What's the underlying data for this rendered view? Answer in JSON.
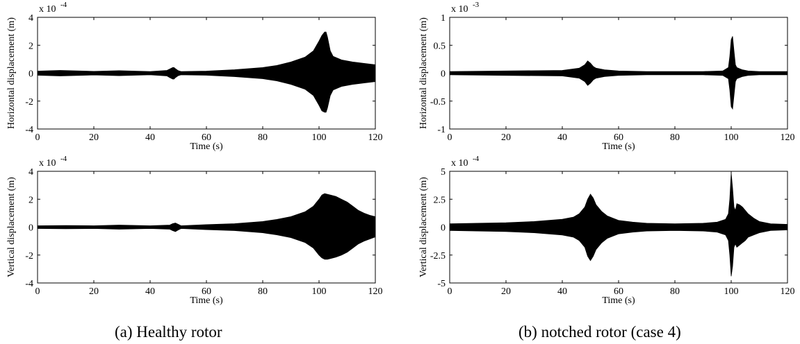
{
  "chart_data": [
    {
      "type": "area",
      "panel": "a",
      "ylabel": "Horizontal displacement (m)",
      "xlabel": "Time (s)",
      "multiplier_label": "x 10",
      "multiplier_exp": "-4",
      "xlim": [
        0,
        120
      ],
      "ylim": [
        -4,
        4
      ],
      "xticks": [
        "0",
        "20",
        "40",
        "60",
        "80",
        "100",
        "120"
      ],
      "yticks": [
        "-4",
        "-2",
        "0",
        "2",
        "4"
      ],
      "x": [
        0,
        8,
        20,
        29,
        40,
        46,
        47,
        48,
        48.5,
        49,
        50,
        51,
        60,
        70,
        80,
        85,
        90,
        95,
        98,
        100,
        101,
        102,
        102.5,
        103,
        104,
        105,
        108,
        112,
        116,
        120
      ],
      "upper": [
        0.15,
        0.2,
        0.13,
        0.18,
        0.12,
        0.2,
        0.3,
        0.4,
        0.4,
        0.32,
        0.18,
        0.12,
        0.15,
        0.25,
        0.4,
        0.55,
        0.8,
        1.15,
        1.6,
        2.3,
        2.7,
        2.95,
        2.95,
        2.6,
        1.6,
        1.2,
        0.95,
        0.8,
        0.7,
        0.6
      ],
      "lower": [
        -0.15,
        -0.2,
        -0.13,
        -0.18,
        -0.12,
        -0.2,
        -0.32,
        -0.42,
        -0.42,
        -0.32,
        -0.18,
        -0.12,
        -0.15,
        -0.25,
        -0.4,
        -0.55,
        -0.8,
        -1.15,
        -1.6,
        -2.3,
        -2.7,
        -2.8,
        -2.8,
        -2.5,
        -1.6,
        -1.2,
        -0.95,
        -0.8,
        -0.7,
        -0.6
      ]
    },
    {
      "type": "area",
      "panel": "a",
      "ylabel": "Vertical displacement (m)",
      "xlabel": "Time (s)",
      "multiplier_label": "x 10",
      "multiplier_exp": "-4",
      "xlim": [
        0,
        120
      ],
      "ylim": [
        -4,
        4
      ],
      "xticks": [
        "0",
        "20",
        "40",
        "60",
        "80",
        "100",
        "120"
      ],
      "yticks": [
        "-4",
        "-2",
        "0",
        "2",
        "4"
      ],
      "x": [
        0,
        10,
        20,
        29,
        40,
        47,
        48,
        49,
        50,
        51,
        60,
        70,
        80,
        85,
        90,
        95,
        98,
        100,
        101,
        102,
        103,
        104,
        106,
        108,
        110,
        112,
        114,
        116,
        118,
        120
      ],
      "upper": [
        0.1,
        0.12,
        0.1,
        0.15,
        0.1,
        0.15,
        0.25,
        0.3,
        0.2,
        0.1,
        0.18,
        0.25,
        0.4,
        0.55,
        0.75,
        1.1,
        1.5,
        2.0,
        2.3,
        2.4,
        2.35,
        2.3,
        2.2,
        2.0,
        1.8,
        1.5,
        1.2,
        1.0,
        0.85,
        0.75
      ],
      "lower": [
        -0.1,
        -0.12,
        -0.1,
        -0.15,
        -0.1,
        -0.15,
        -0.25,
        -0.32,
        -0.2,
        -0.1,
        -0.18,
        -0.25,
        -0.4,
        -0.55,
        -0.75,
        -1.1,
        -1.5,
        -2.0,
        -2.2,
        -2.3,
        -2.3,
        -2.25,
        -2.15,
        -2.0,
        -1.8,
        -1.5,
        -1.2,
        -1.0,
        -0.85,
        -0.7
      ]
    },
    {
      "type": "area",
      "panel": "b",
      "ylabel": "Horizontal displacement (m)",
      "xlabel": "Time (s)",
      "multiplier_label": "x 10",
      "multiplier_exp": "-3",
      "xlim": [
        0,
        120
      ],
      "ylim": [
        -1,
        1
      ],
      "xticks": [
        "0",
        "20",
        "40",
        "60",
        "80",
        "100",
        "120"
      ],
      "yticks": [
        "-1",
        "-0.5",
        "0",
        "0.5",
        "1"
      ],
      "x": [
        0,
        20,
        40,
        46,
        48,
        49,
        50,
        51,
        52,
        55,
        60,
        70,
        80,
        90,
        97,
        99,
        99.5,
        100,
        100.5,
        101,
        101.5,
        102,
        103,
        104,
        106,
        110,
        120
      ],
      "upper": [
        0.03,
        0.04,
        0.05,
        0.09,
        0.15,
        0.22,
        0.18,
        0.12,
        0.09,
        0.06,
        0.04,
        0.03,
        0.03,
        0.03,
        0.04,
        0.1,
        0.3,
        0.6,
        0.66,
        0.4,
        0.15,
        0.1,
        0.08,
        0.06,
        0.04,
        0.03,
        0.03
      ],
      "lower": [
        -0.03,
        -0.04,
        -0.05,
        -0.09,
        -0.15,
        -0.22,
        -0.18,
        -0.12,
        -0.09,
        -0.06,
        -0.04,
        -0.03,
        -0.03,
        -0.03,
        -0.04,
        -0.1,
        -0.3,
        -0.6,
        -0.64,
        -0.4,
        -0.15,
        -0.1,
        -0.08,
        -0.06,
        -0.04,
        -0.03,
        -0.03
      ]
    },
    {
      "type": "area",
      "panel": "b",
      "ylabel": "Vertical displacement (m)",
      "xlabel": "Time (s)",
      "multiplier_label": "x 10",
      "multiplier_exp": "-4",
      "xlim": [
        0,
        120
      ],
      "ylim": [
        -5,
        5
      ],
      "xticks": [
        "0",
        "20",
        "40",
        "60",
        "80",
        "100",
        "120"
      ],
      "yticks": [
        "-5",
        "-2.5",
        "0",
        "2.5",
        "5"
      ],
      "x": [
        0,
        10,
        20,
        30,
        40,
        44,
        46,
        48,
        49,
        50,
        51,
        52,
        54,
        56,
        58,
        60,
        65,
        70,
        80,
        90,
        95,
        98,
        99,
        99.5,
        100,
        100.5,
        101,
        101.5,
        102,
        103,
        104,
        105,
        106,
        108,
        110,
        114,
        120
      ],
      "upper": [
        0.3,
        0.35,
        0.4,
        0.5,
        0.7,
        0.9,
        1.2,
        1.8,
        2.5,
        2.95,
        2.6,
        2.0,
        1.4,
        1.0,
        0.8,
        0.6,
        0.45,
        0.35,
        0.3,
        0.35,
        0.45,
        0.7,
        1.2,
        2.5,
        4.85,
        3.5,
        1.8,
        1.5,
        2.1,
        2.0,
        1.8,
        1.5,
        1.2,
        0.8,
        0.5,
        0.3,
        0.25
      ],
      "lower": [
        -0.3,
        -0.35,
        -0.4,
        -0.5,
        -0.7,
        -0.9,
        -1.2,
        -1.8,
        -2.6,
        -3.0,
        -2.6,
        -2.0,
        -1.4,
        -1.0,
        -0.8,
        -0.6,
        -0.45,
        -0.35,
        -0.3,
        -0.35,
        -0.45,
        -0.7,
        -1.2,
        -2.5,
        -4.4,
        -3.5,
        -1.8,
        -1.5,
        -1.8,
        -1.6,
        -1.4,
        -1.2,
        -0.9,
        -0.7,
        -0.5,
        -0.3,
        -0.25
      ]
    }
  ],
  "captions": {
    "left": "(a) Healthy rotor",
    "right": "(b) notched rotor (case 4)"
  }
}
